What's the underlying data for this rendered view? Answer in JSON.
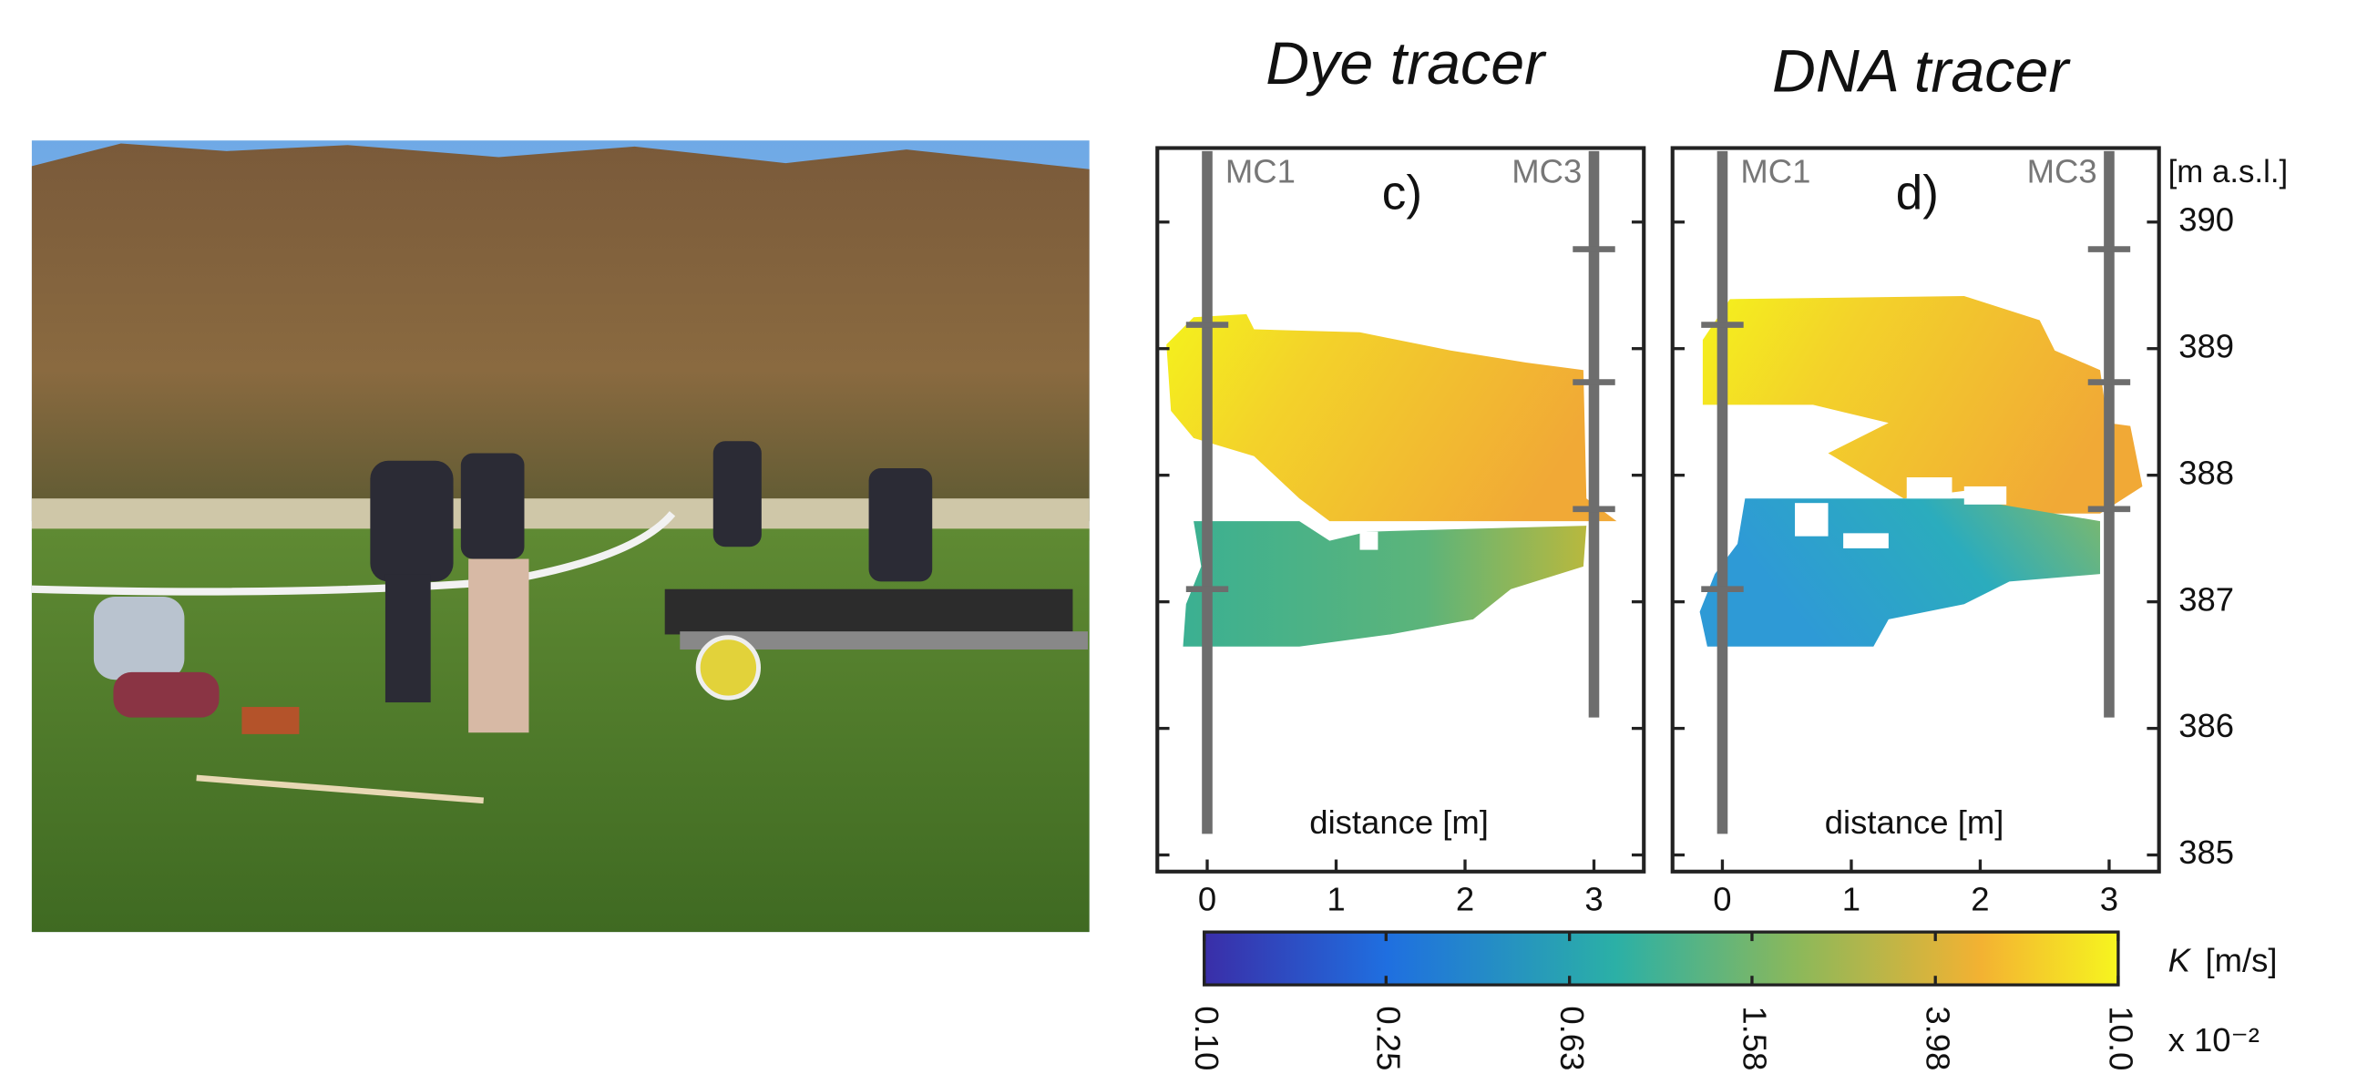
{
  "panels": [
    {
      "title": "Dye tracer",
      "label": "c)",
      "wells": [
        "MC1",
        "MC3"
      ],
      "xlabel": "distance [m]",
      "xticks": [
        0,
        1,
        2,
        3
      ]
    },
    {
      "title": "DNA tracer",
      "label": "d)",
      "wells": [
        "MC1",
        "MC3"
      ],
      "xlabel": "distance [m]",
      "xticks": [
        0,
        1,
        2,
        3
      ]
    }
  ],
  "elevation_axis": {
    "unit": "[m a.s.l.]",
    "ticks": [
      385,
      386,
      387,
      388,
      389,
      390
    ]
  },
  "colorbar": {
    "symbol": "K",
    "unit": "[m/s]",
    "multiplier": "x 10⁻²",
    "ticks": [
      {
        "value": 0.1,
        "label": "0.10"
      },
      {
        "value": 0.25,
        "label": "0.25"
      },
      {
        "value": 0.63,
        "label": "0.63"
      },
      {
        "value": 1.58,
        "label": "1.58"
      },
      {
        "value": 3.98,
        "label": "3.98"
      },
      {
        "value": 10,
        "label": "10.0"
      }
    ]
  }
}
